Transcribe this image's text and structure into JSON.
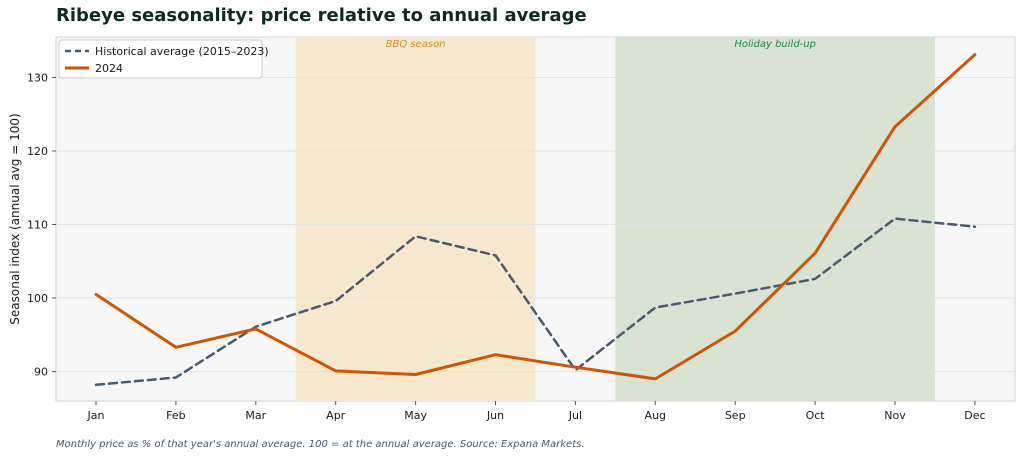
{
  "title": "Ribeye seasonality: price relative to annual average",
  "footnote": "Monthly price as % of that year's annual average. 100 = at the annual average. Source: Expana Markets.",
  "chart_data": {
    "type": "line",
    "title": "Ribeye seasonality: price relative to annual average",
    "xlabel": "",
    "ylabel": "Seasonal index  (annual avg = 100)",
    "categories": [
      "Jan",
      "Feb",
      "Mar",
      "Apr",
      "May",
      "Jun",
      "Jul",
      "Aug",
      "Sep",
      "Oct",
      "Nov",
      "Dec"
    ],
    "yticks": [
      90,
      100,
      110,
      120,
      130
    ],
    "ylim": [
      86,
      135.5
    ],
    "grid": "horizontal",
    "legend_position": "top-left",
    "series": [
      {
        "name": "Historical average (2015–2023)",
        "color": "#4a5a6e",
        "dash": "dashed",
        "values": [
          88.2,
          89.2,
          96.1,
          99.6,
          108.4,
          105.8,
          90.2,
          98.7,
          100.6,
          102.6,
          110.8,
          109.7
        ]
      },
      {
        "name": "2024",
        "color": "#d35400",
        "dash": "solid",
        "values": [
          100.5,
          93.3,
          95.8,
          90.1,
          89.6,
          92.3,
          90.6,
          89.0,
          95.5,
          106.1,
          123.3,
          133.1
        ]
      }
    ],
    "bands": [
      {
        "label": "BBQ season",
        "from_month": "Apr",
        "to_month": "Jun",
        "color": "#f5e8cf",
        "text_color": "#e08a1e"
      },
      {
        "label": "Holiday build-up",
        "from_month": "Aug",
        "to_month": "Nov",
        "color": "#d8e3d2",
        "text_color": "#1e8a4a"
      }
    ]
  }
}
